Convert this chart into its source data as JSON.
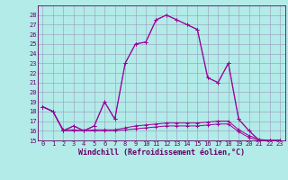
{
  "xlabel": "Windchill (Refroidissement éolien,°C)",
  "background_color": "#b2ebe8",
  "grid_color": "#9999bb",
  "line_color": "#990099",
  "hours": [
    0,
    1,
    2,
    3,
    4,
    5,
    6,
    7,
    8,
    9,
    10,
    11,
    12,
    13,
    14,
    15,
    16,
    17,
    18,
    19,
    20,
    21,
    22,
    23
  ],
  "temp": [
    18.5,
    18.0,
    16.0,
    16.5,
    16.0,
    16.5,
    19.0,
    17.2,
    23.0,
    25.0,
    25.2,
    27.5,
    28.0,
    27.5,
    27.0,
    26.5,
    21.5,
    21.0,
    23.0,
    17.2,
    16.0,
    15.0,
    15.0,
    15.0
  ],
  "windchill2": [
    18.5,
    18.0,
    16.1,
    16.1,
    16.0,
    16.1,
    16.1,
    16.1,
    16.3,
    16.5,
    16.6,
    16.7,
    16.8,
    16.8,
    16.8,
    16.8,
    16.9,
    17.0,
    17.0,
    16.1,
    15.5,
    15.1,
    15.0,
    15.0
  ],
  "windchill3": [
    18.5,
    18.0,
    16.0,
    16.0,
    16.0,
    16.0,
    16.0,
    16.0,
    16.1,
    16.2,
    16.3,
    16.4,
    16.5,
    16.5,
    16.5,
    16.5,
    16.6,
    16.7,
    16.7,
    15.9,
    15.3,
    15.0,
    15.0,
    15.0
  ],
  "ylim": [
    15,
    29
  ],
  "yticks": [
    15,
    16,
    17,
    18,
    19,
    20,
    21,
    22,
    23,
    24,
    25,
    26,
    27,
    28
  ],
  "tick_fontsize": 5.0,
  "label_fontsize": 6.0
}
